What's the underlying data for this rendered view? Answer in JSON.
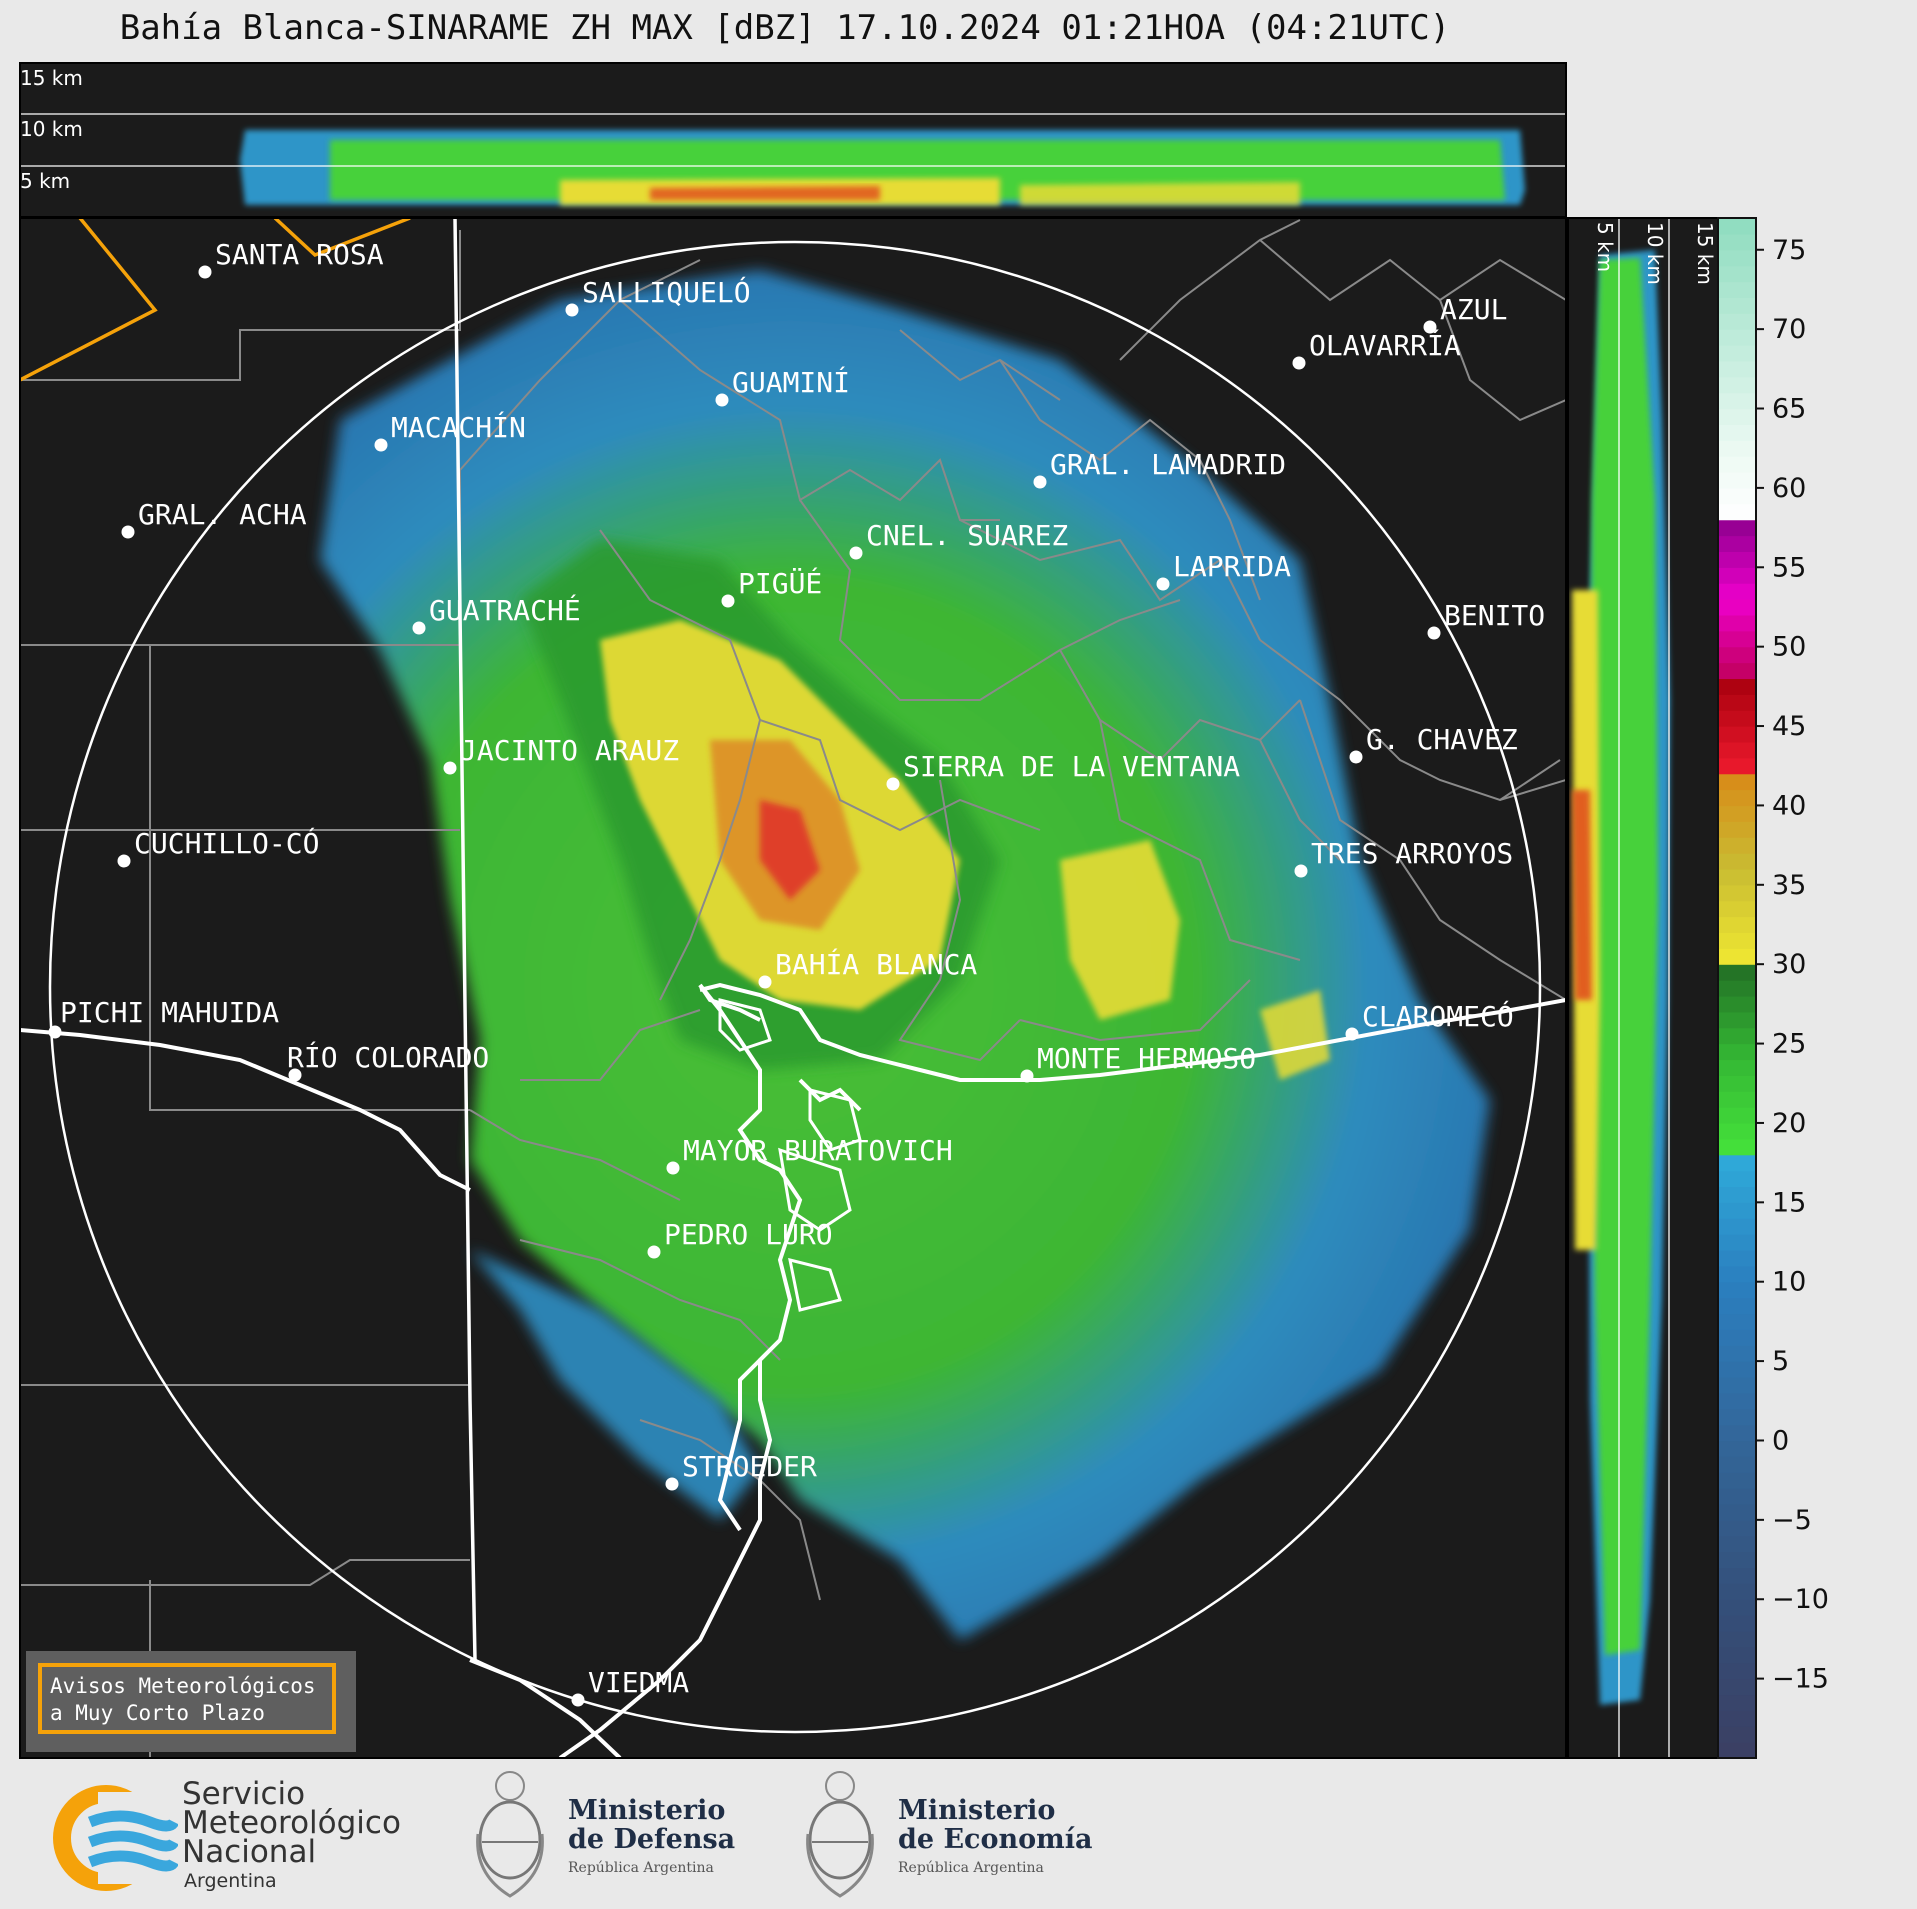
{
  "title": "Bahía Blanca-SINARAME ZH MAX [dBZ] 17.10.2024 01:21HOA (04:21UTC)",
  "top_panel": {
    "height_labels": [
      "15 km",
      "10 km",
      "5 km"
    ]
  },
  "right_panel": {
    "height_labels": [
      "5 km",
      "10 km",
      "15 km"
    ]
  },
  "colorbar": {
    "ticks": [
      "75",
      "70",
      "65",
      "60",
      "55",
      "50",
      "45",
      "40",
      "35",
      "30",
      "25",
      "20",
      "15",
      "10",
      "5",
      "0",
      "−5",
      "−10",
      "−15"
    ],
    "tick_values": [
      75,
      70,
      65,
      60,
      55,
      50,
      45,
      40,
      35,
      30,
      25,
      20,
      15,
      10,
      5,
      0,
      -5,
      -10,
      -15
    ],
    "range": [
      -20,
      77
    ],
    "stops": [
      [
        -20,
        "#3b3f63"
      ],
      [
        -10,
        "#34507a"
      ],
      [
        0,
        "#336699"
      ],
      [
        10,
        "#2b7fbf"
      ],
      [
        17.5,
        "#2fa8d8"
      ],
      [
        18,
        "#45e23a"
      ],
      [
        24,
        "#35b834"
      ],
      [
        30,
        "#226e25"
      ],
      [
        30.01,
        "#f0e832"
      ],
      [
        36,
        "#c9bc32"
      ],
      [
        42,
        "#d88a18"
      ],
      [
        42.01,
        "#ee1a2e"
      ],
      [
        48,
        "#a8000e"
      ],
      [
        48.01,
        "#c0005c"
      ],
      [
        53,
        "#ee00cc"
      ],
      [
        58,
        "#8e008e"
      ],
      [
        58.01,
        "#ffffff"
      ],
      [
        62,
        "#eefaf4"
      ],
      [
        77,
        "#8edcbf"
      ]
    ]
  },
  "legend_colors": {
    "background": "#1b1b1b",
    "boundaries": "#8a8a8a",
    "range_ring": "#ffffff",
    "province_border": "#f5a20a",
    "route": "#ffffff"
  },
  "cities": [
    {
      "name": "SANTA ROSA"
    },
    {
      "name": "SALLIQUELÓ"
    },
    {
      "name": "GUAMINÍ"
    },
    {
      "name": "AZUL"
    },
    {
      "name": "OLAVARRÍA"
    },
    {
      "name": "MACACHÍN"
    },
    {
      "name": "GRAL. LAMADRID"
    },
    {
      "name": "GRAL. ACHA"
    },
    {
      "name": "CNEL. SUAREZ"
    },
    {
      "name": "PIGÜÉ"
    },
    {
      "name": "LAPRIDA"
    },
    {
      "name": "GUATRACHÉ"
    },
    {
      "name": "BENITO"
    },
    {
      "name": "G. CHAVEZ"
    },
    {
      "name": "JACINTO ARAUZ"
    },
    {
      "name": "SIERRA DE LA VENTANA"
    },
    {
      "name": "CUCHILLO-CÓ"
    },
    {
      "name": "TRES ARROYOS"
    },
    {
      "name": "BAHÍA BLANCA"
    },
    {
      "name": "CLAROMECÓ"
    },
    {
      "name": "PICHI MAHUIDA"
    },
    {
      "name": "MONTE HERMOSO"
    },
    {
      "name": "RÍO COLORADO"
    },
    {
      "name": "MAYOR BURATOVICH"
    },
    {
      "name": "PEDRO LURO"
    },
    {
      "name": "STROEDER"
    },
    {
      "name": "VIEDMA"
    }
  ],
  "avisos": {
    "line1": "Avisos Meteorológicos",
    "line2": "a Muy Corto Plazo"
  },
  "logos": {
    "smn": {
      "line1": "Servicio",
      "line2": "Meteorológico",
      "line3": "Nacional",
      "line4": "Argentina"
    },
    "defensa": {
      "line1": "Ministerio",
      "line2": "de Defensa",
      "sub": "República Argentina"
    },
    "economia": {
      "line1": "Ministerio",
      "line2": "de Economía",
      "sub": "República Argentina"
    }
  }
}
